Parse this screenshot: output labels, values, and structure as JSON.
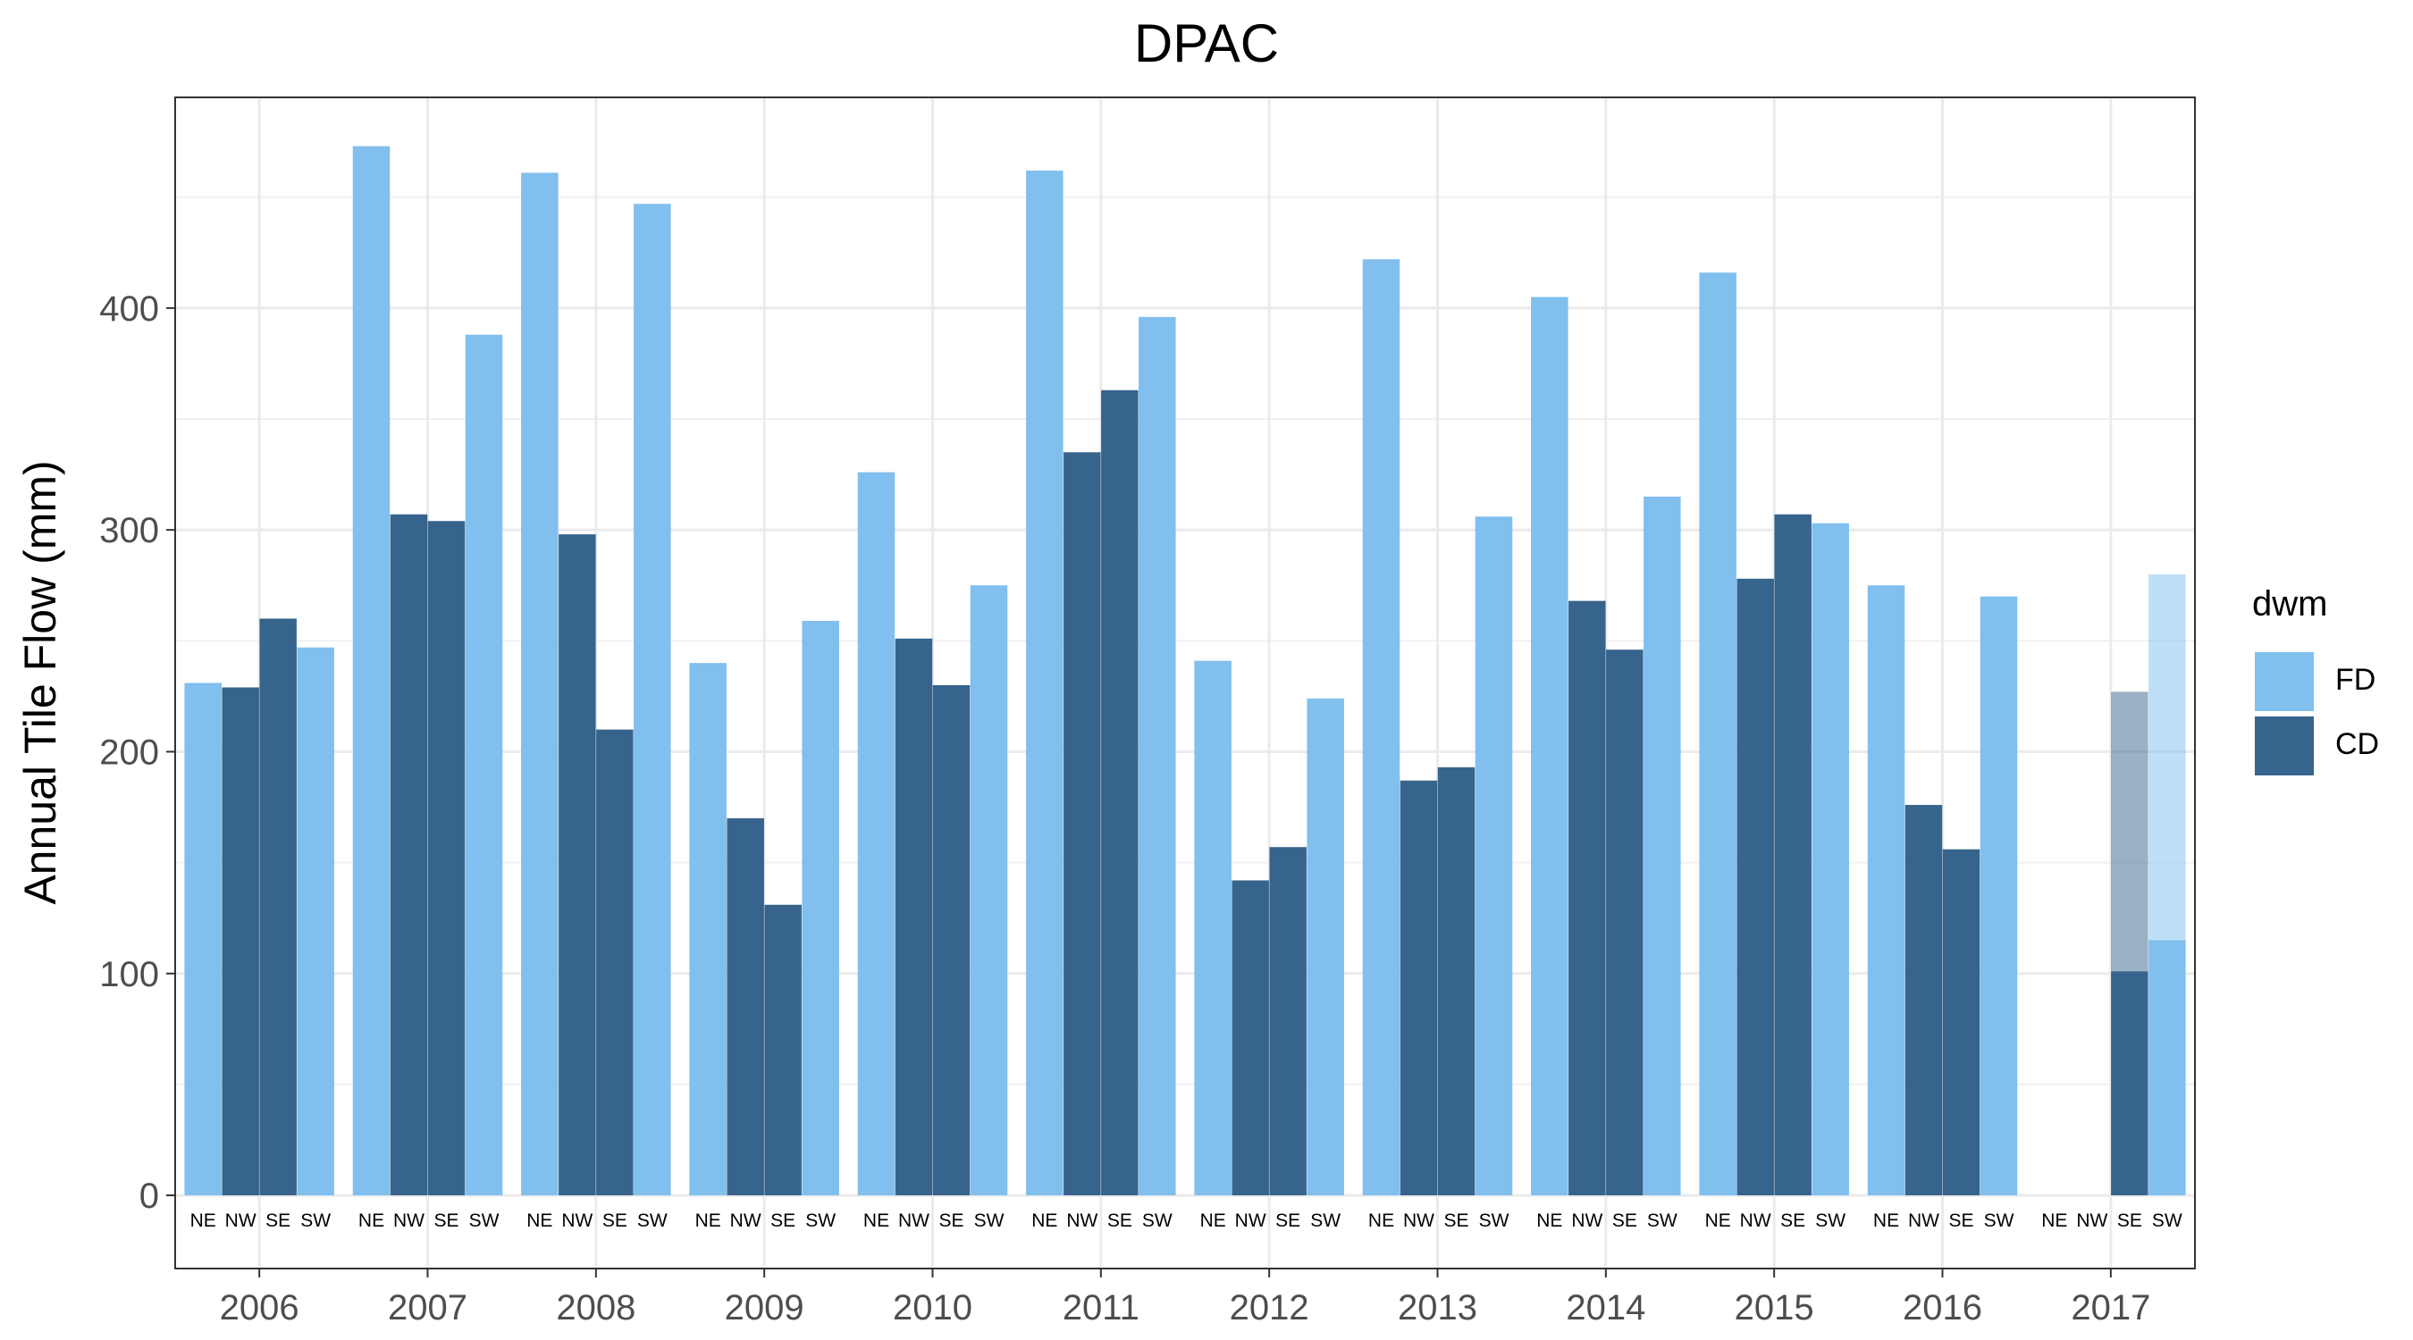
{
  "chart_data": {
    "type": "bar",
    "title": "DPAC",
    "xlabel": "",
    "ylabel": "Annual Tile Flow (mm)",
    "ylim": [
      -33,
      495
    ],
    "yticks": [
      0,
      100,
      200,
      300,
      400
    ],
    "grid": true,
    "legend": {
      "title": "dwm",
      "placement": "right",
      "entries": [
        "FD",
        "CD"
      ]
    },
    "colors": {
      "FD": "#80bfee",
      "CD": "#37648c"
    },
    "years": [
      "2006",
      "2007",
      "2008",
      "2009",
      "2010",
      "2011",
      "2012",
      "2013",
      "2014",
      "2015",
      "2016",
      "2017"
    ],
    "sites": [
      "NE",
      "NW",
      "SE",
      "SW"
    ],
    "series": [
      {
        "year": "2006",
        "values": [
          {
            "site": "NE",
            "dwm": "FD",
            "value": 231
          },
          {
            "site": "NW",
            "dwm": "CD",
            "value": 229
          },
          {
            "site": "SE",
            "dwm": "CD",
            "value": 260
          },
          {
            "site": "SW",
            "dwm": "FD",
            "value": 247
          }
        ]
      },
      {
        "year": "2007",
        "values": [
          {
            "site": "NE",
            "dwm": "FD",
            "value": 473
          },
          {
            "site": "NW",
            "dwm": "CD",
            "value": 307
          },
          {
            "site": "SE",
            "dwm": "CD",
            "value": 304
          },
          {
            "site": "SW",
            "dwm": "FD",
            "value": 388
          }
        ]
      },
      {
        "year": "2008",
        "values": [
          {
            "site": "NE",
            "dwm": "FD",
            "value": 461
          },
          {
            "site": "NW",
            "dwm": "CD",
            "value": 298
          },
          {
            "site": "SE",
            "dwm": "CD",
            "value": 210
          },
          {
            "site": "SW",
            "dwm": "FD",
            "value": 447
          }
        ]
      },
      {
        "year": "2009",
        "values": [
          {
            "site": "NE",
            "dwm": "FD",
            "value": 240
          },
          {
            "site": "NW",
            "dwm": "CD",
            "value": 170
          },
          {
            "site": "SE",
            "dwm": "CD",
            "value": 131
          },
          {
            "site": "SW",
            "dwm": "FD",
            "value": 259
          }
        ]
      },
      {
        "year": "2010",
        "values": [
          {
            "site": "NE",
            "dwm": "FD",
            "value": 326
          },
          {
            "site": "NW",
            "dwm": "CD",
            "value": 251
          },
          {
            "site": "SE",
            "dwm": "CD",
            "value": 230
          },
          {
            "site": "SW",
            "dwm": "FD",
            "value": 275
          }
        ]
      },
      {
        "year": "2011",
        "values": [
          {
            "site": "NE",
            "dwm": "FD",
            "value": 462
          },
          {
            "site": "NW",
            "dwm": "CD",
            "value": 335
          },
          {
            "site": "SE",
            "dwm": "CD",
            "value": 363
          },
          {
            "site": "SW",
            "dwm": "FD",
            "value": 396
          }
        ]
      },
      {
        "year": "2012",
        "values": [
          {
            "site": "NE",
            "dwm": "FD",
            "value": 241
          },
          {
            "site": "NW",
            "dwm": "CD",
            "value": 142
          },
          {
            "site": "SE",
            "dwm": "CD",
            "value": 157
          },
          {
            "site": "SW",
            "dwm": "FD",
            "value": 224
          }
        ]
      },
      {
        "year": "2013",
        "values": [
          {
            "site": "NE",
            "dwm": "FD",
            "value": 422
          },
          {
            "site": "NW",
            "dwm": "CD",
            "value": 187
          },
          {
            "site": "SE",
            "dwm": "CD",
            "value": 193
          },
          {
            "site": "SW",
            "dwm": "FD",
            "value": 306
          }
        ]
      },
      {
        "year": "2014",
        "values": [
          {
            "site": "NE",
            "dwm": "FD",
            "value": 405
          },
          {
            "site": "NW",
            "dwm": "CD",
            "value": 268
          },
          {
            "site": "SE",
            "dwm": "CD",
            "value": 246
          },
          {
            "site": "SW",
            "dwm": "FD",
            "value": 315
          }
        ]
      },
      {
        "year": "2015",
        "values": [
          {
            "site": "NE",
            "dwm": "FD",
            "value": 416
          },
          {
            "site": "NW",
            "dwm": "CD",
            "value": 278
          },
          {
            "site": "SE",
            "dwm": "CD",
            "value": 307
          },
          {
            "site": "SW",
            "dwm": "FD",
            "value": 303
          }
        ]
      },
      {
        "year": "2016",
        "values": [
          {
            "site": "NE",
            "dwm": "FD",
            "value": 275
          },
          {
            "site": "NW",
            "dwm": "CD",
            "value": 176
          },
          {
            "site": "SE",
            "dwm": "CD",
            "value": 156
          },
          {
            "site": "SW",
            "dwm": "FD",
            "value": 270
          }
        ]
      },
      {
        "year": "2017",
        "values": [
          {
            "site": "SE",
            "dwm": "CD",
            "value": 101,
            "faded_total": 227
          },
          {
            "site": "SW",
            "dwm": "FD",
            "value": 115,
            "faded_total": 280
          }
        ]
      }
    ]
  }
}
